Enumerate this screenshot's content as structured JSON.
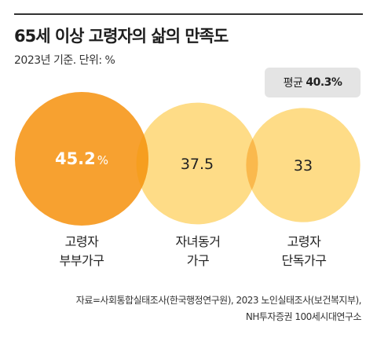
{
  "header": {
    "title": "65세 이상 고령자의 삶의 만족도",
    "subtitle": "2023년 기준. 단위: %"
  },
  "badge": {
    "label": "평균",
    "value": "40.3%"
  },
  "chart_data": {
    "type": "bubble",
    "title": "65세 이상 고령자의 삶의 만족도",
    "unit": "%",
    "average": 40.3,
    "categories": [
      {
        "line1": "고령자",
        "line2": "부부가구"
      },
      {
        "line1": "자녀동거",
        "line2": "가구"
      },
      {
        "line1": "고령자",
        "line2": "단독가구"
      }
    ],
    "values": [
      45.2,
      37.5,
      33
    ],
    "value_labels": [
      "45.2",
      "37.5",
      "33"
    ],
    "highlight_suffix": "%",
    "colors": {
      "highlight": "#f7a130",
      "normal": "#fedc87",
      "overlap": "#f59d1e"
    }
  },
  "source": {
    "line1": "자료=사회통합실태조사(한국행정연구원), 2023 노인실태조사(보건복지부),",
    "line2": "NH투자증권 100세시대연구소"
  }
}
